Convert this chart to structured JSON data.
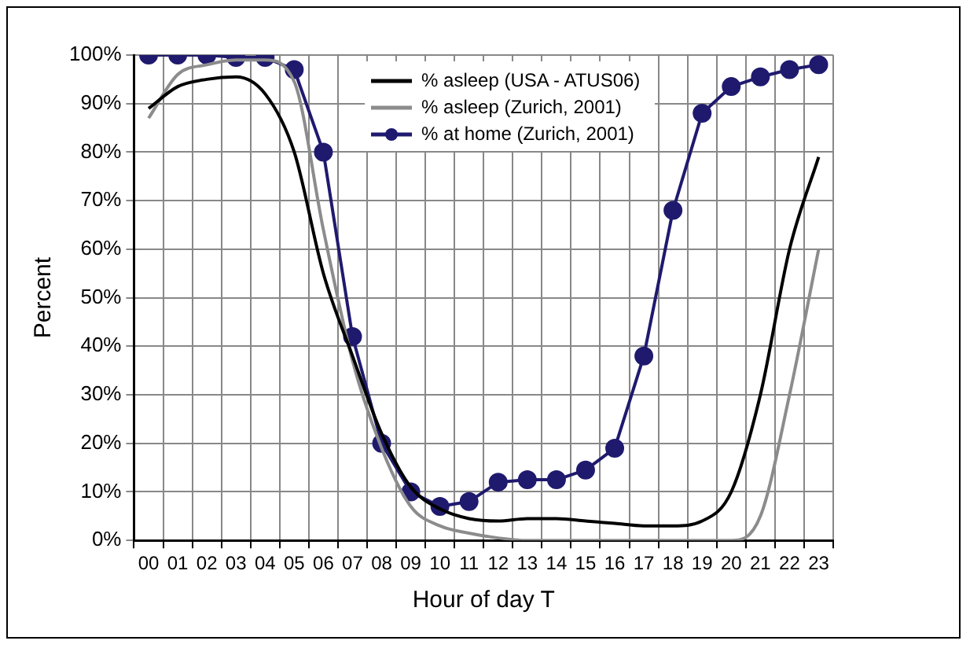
{
  "chart_data": {
    "type": "line",
    "xlabel": "Hour of day T",
    "ylabel": "Percent",
    "categories": [
      "00",
      "01",
      "02",
      "03",
      "04",
      "05",
      "06",
      "07",
      "08",
      "09",
      "10",
      "11",
      "12",
      "13",
      "14",
      "15",
      "16",
      "17",
      "18",
      "19",
      "20",
      "21",
      "22",
      "23"
    ],
    "series": [
      {
        "name": "% asleep (USA - ATUS06)",
        "color": "#000000",
        "marker": "none",
        "values": [
          89,
          93.5,
          95,
          95.5,
          92,
          80,
          55,
          38,
          22,
          11,
          6.5,
          4.5,
          4,
          4.5,
          4.5,
          4,
          3.5,
          3,
          3,
          4,
          10,
          30,
          60,
          79
        ]
      },
      {
        "name": "% asleep (Zurich, 2001)",
        "color": "#8c8c8c",
        "marker": "none",
        "values": [
          87,
          96,
          98,
          99,
          99,
          94.5,
          64,
          37,
          19,
          7,
          3,
          1.5,
          0.5,
          0,
          0,
          0,
          0,
          0,
          0,
          0,
          0,
          5,
          30,
          60
        ]
      },
      {
        "name": "% at home (Zurich, 2001)",
        "color": "#1f1a6e",
        "marker": "circle",
        "values": [
          100,
          100,
          100,
          99.5,
          99.5,
          97,
          80,
          42,
          20,
          10,
          7,
          8,
          12,
          12.5,
          12.5,
          14.5,
          19,
          38,
          68,
          88,
          93.5,
          95.5,
          97,
          98
        ]
      }
    ],
    "ylim": [
      0,
      100
    ],
    "yticks": [
      {
        "value": 0,
        "label": "0%"
      },
      {
        "value": 10,
        "label": "10%"
      },
      {
        "value": 20,
        "label": "20%"
      },
      {
        "value": 30,
        "label": "30%"
      },
      {
        "value": 40,
        "label": "40%"
      },
      {
        "value": 50,
        "label": "50%"
      },
      {
        "value": 60,
        "label": "60%"
      },
      {
        "value": 70,
        "label": "70%"
      },
      {
        "value": 80,
        "label": "80%"
      },
      {
        "value": 90,
        "label": "90%"
      },
      {
        "value": 100,
        "label": "100%"
      }
    ],
    "grid": true,
    "legend": "top right",
    "line_style": "solid"
  }
}
